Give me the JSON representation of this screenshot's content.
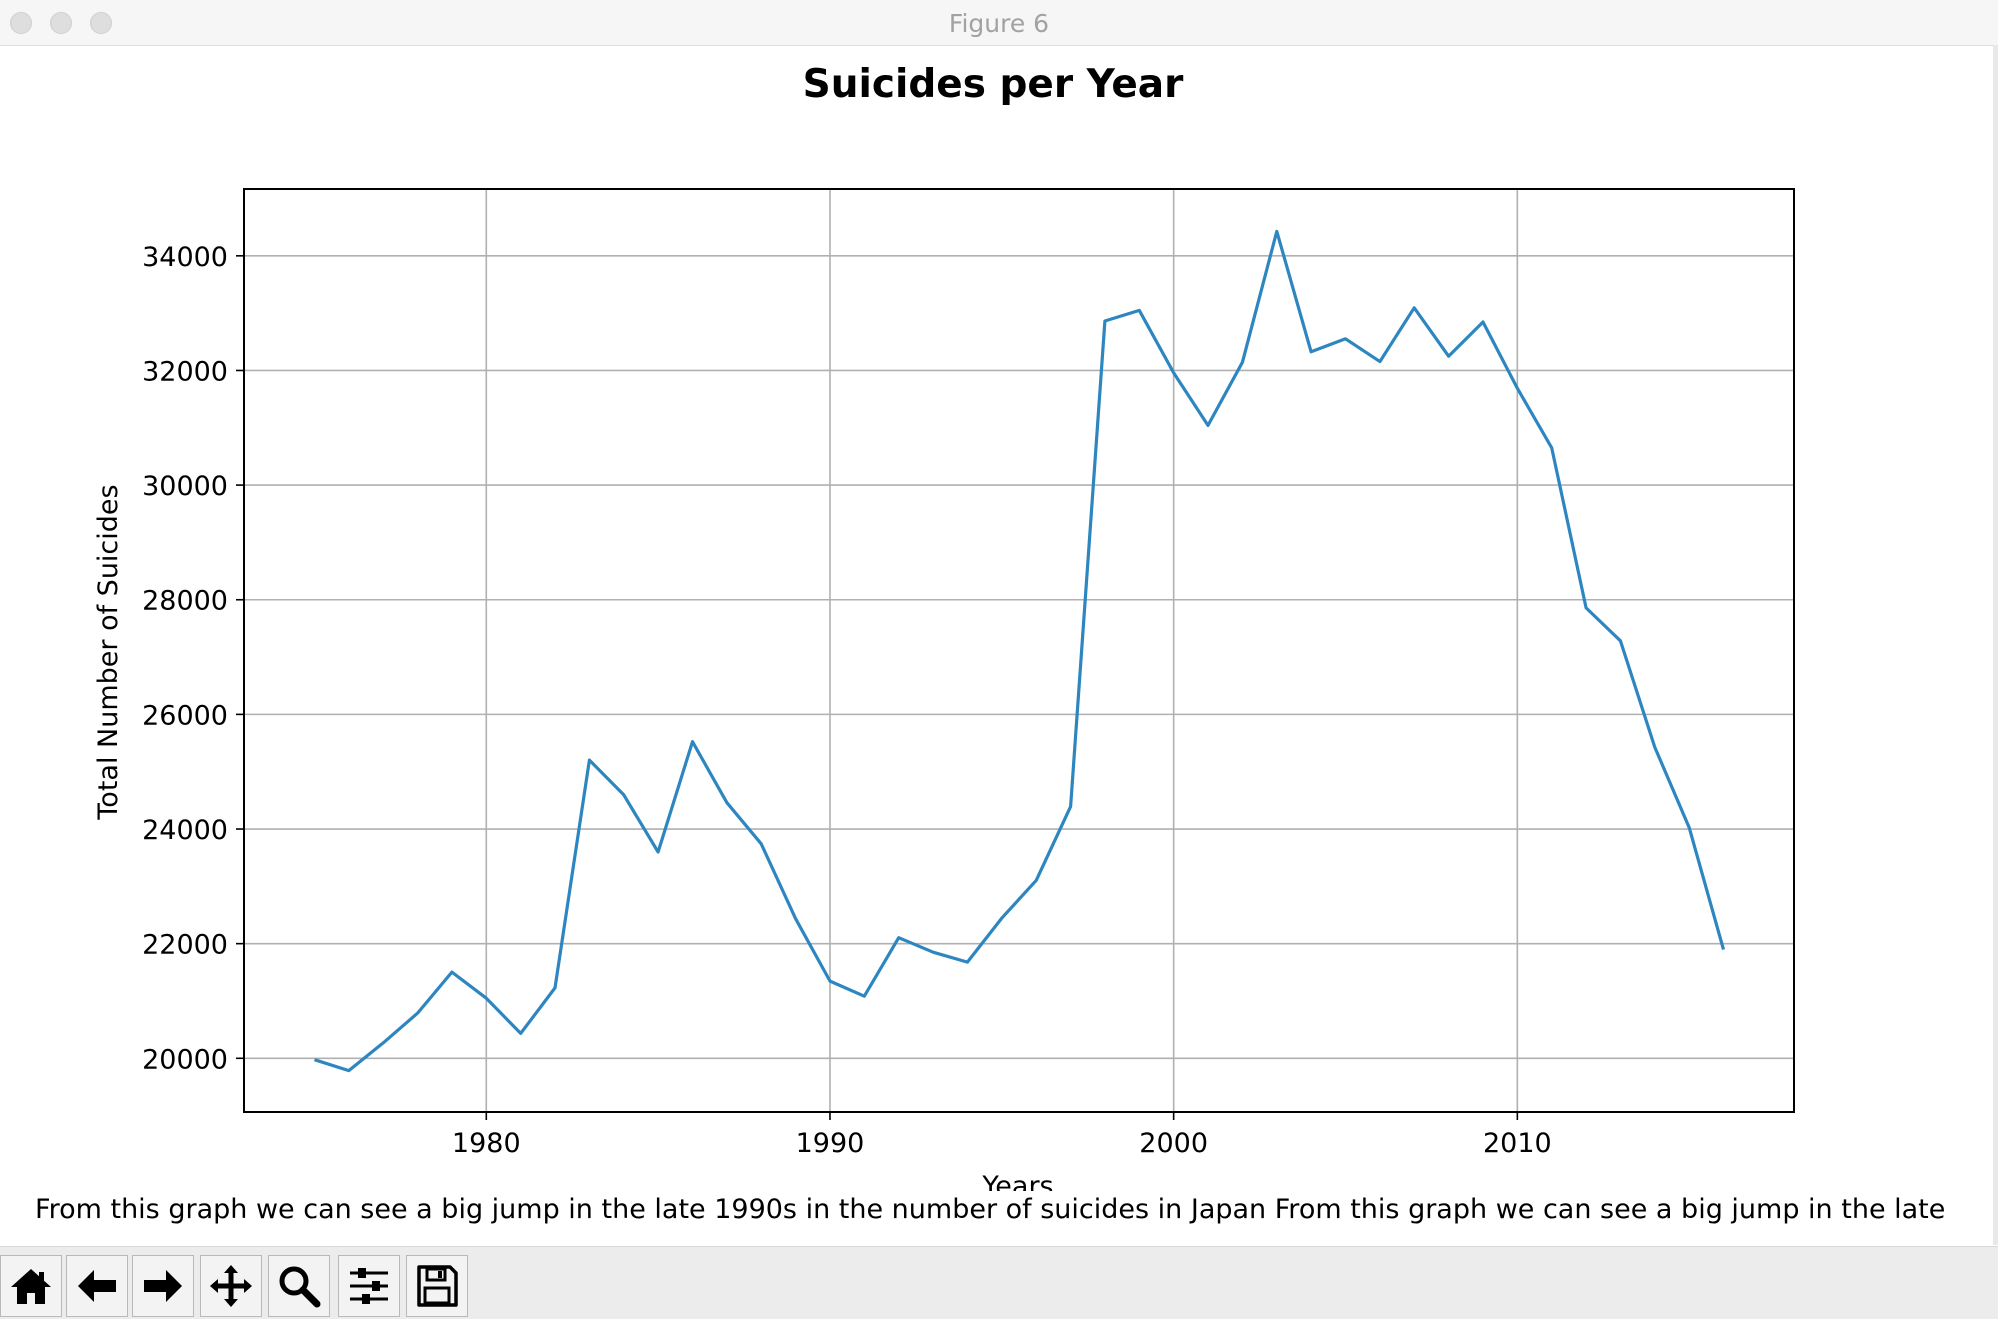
{
  "window": {
    "title": "Figure 6"
  },
  "caption": "From this graph we can see a big jump in the late 1990s in the number of suicides in Japan From this graph we can see a big jump in the late",
  "toolbar": {
    "buttons": [
      "home-icon",
      "back-icon",
      "forward-icon",
      "pan-icon",
      "zoom-icon",
      "configure-subplots-icon",
      "save-icon"
    ]
  },
  "colors": {
    "line": "#2e86c1",
    "grid": "#b0b0b0",
    "axes": "#000000"
  },
  "chart_data": {
    "type": "line",
    "title": "Suicides per Year",
    "xlabel": "Years",
    "ylabel": "Total Number of Suicides",
    "xlim": [
      1972.95,
      2018.05
    ],
    "ylim": [
      19063,
      35166
    ],
    "xticks": [
      1980,
      1990,
      2000,
      2010
    ],
    "yticks": [
      20000,
      22000,
      24000,
      26000,
      28000,
      30000,
      32000,
      34000
    ],
    "grid": true,
    "series": [
      {
        "x": [
          1975,
          1976,
          1977,
          1978,
          1979,
          1980,
          1981,
          1982,
          1983,
          1984,
          1985,
          1986,
          1987,
          1988,
          1989,
          1990,
          1991,
          1992,
          1993,
          1994,
          1995,
          1996,
          1997,
          1998,
          1999,
          2000,
          2001,
          2002,
          2003,
          2004,
          2005,
          2006,
          2007,
          2008,
          2009,
          2010,
          2011,
          2012,
          2013,
          2014,
          2015,
          2016
        ],
        "values": [
          19975,
          19786,
          20269,
          20788,
          21503,
          21048,
          20434,
          21228,
          25202,
          24596,
          23599,
          25524,
          24460,
          23742,
          22436,
          21346,
          21084,
          22104,
          21851,
          21679,
          22445,
          23104,
          24391,
          32863,
          33048,
          31957,
          31042,
          32143,
          34427,
          32325,
          32552,
          32155,
          33093,
          32249,
          32845,
          31690,
          30651,
          27858,
          27283,
          25427,
          24025,
          21897
        ]
      }
    ]
  }
}
